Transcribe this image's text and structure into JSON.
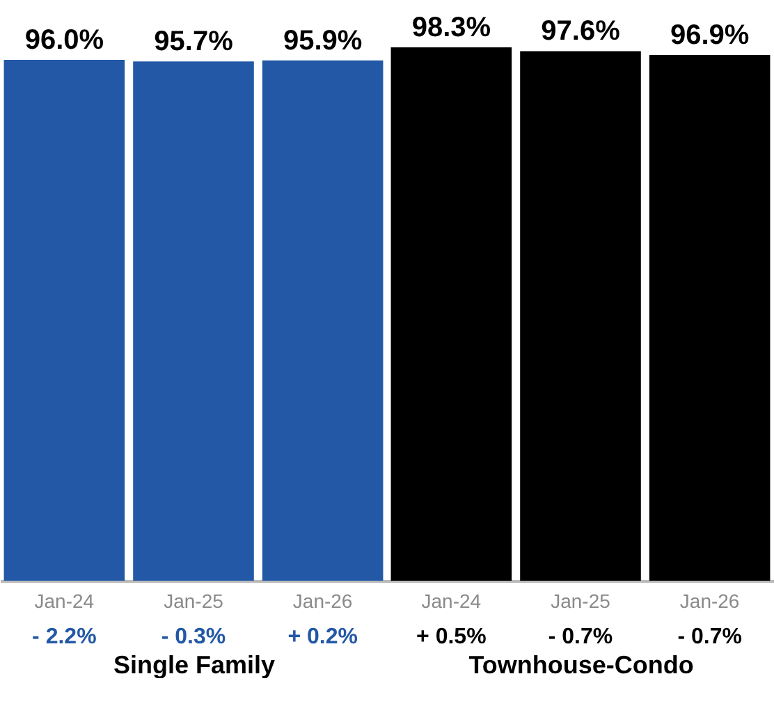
{
  "chart_data": [
    {
      "type": "bar",
      "xlabel": "Single Family",
      "categories": [
        "Jan-24",
        "Jan-25",
        "Jan-26"
      ],
      "values": [
        96.0,
        95.7,
        95.9
      ],
      "value_labels": [
        "96.0%",
        "95.7%",
        "95.9%"
      ],
      "color": "#2358a6",
      "annotations": [
        "- 2.2%",
        "- 0.3%",
        "+ 0.2%"
      ]
    },
    {
      "type": "bar",
      "xlabel": "Townhouse-Condo",
      "categories": [
        "Jan-24",
        "Jan-25",
        "Jan-26"
      ],
      "values": [
        98.3,
        97.6,
        96.9
      ],
      "value_labels": [
        "98.3%",
        "97.6%",
        "96.9%"
      ],
      "color": "#000000",
      "annotations": [
        "+ 0.5%",
        "- 0.7%",
        "- 0.7%"
      ]
    }
  ]
}
